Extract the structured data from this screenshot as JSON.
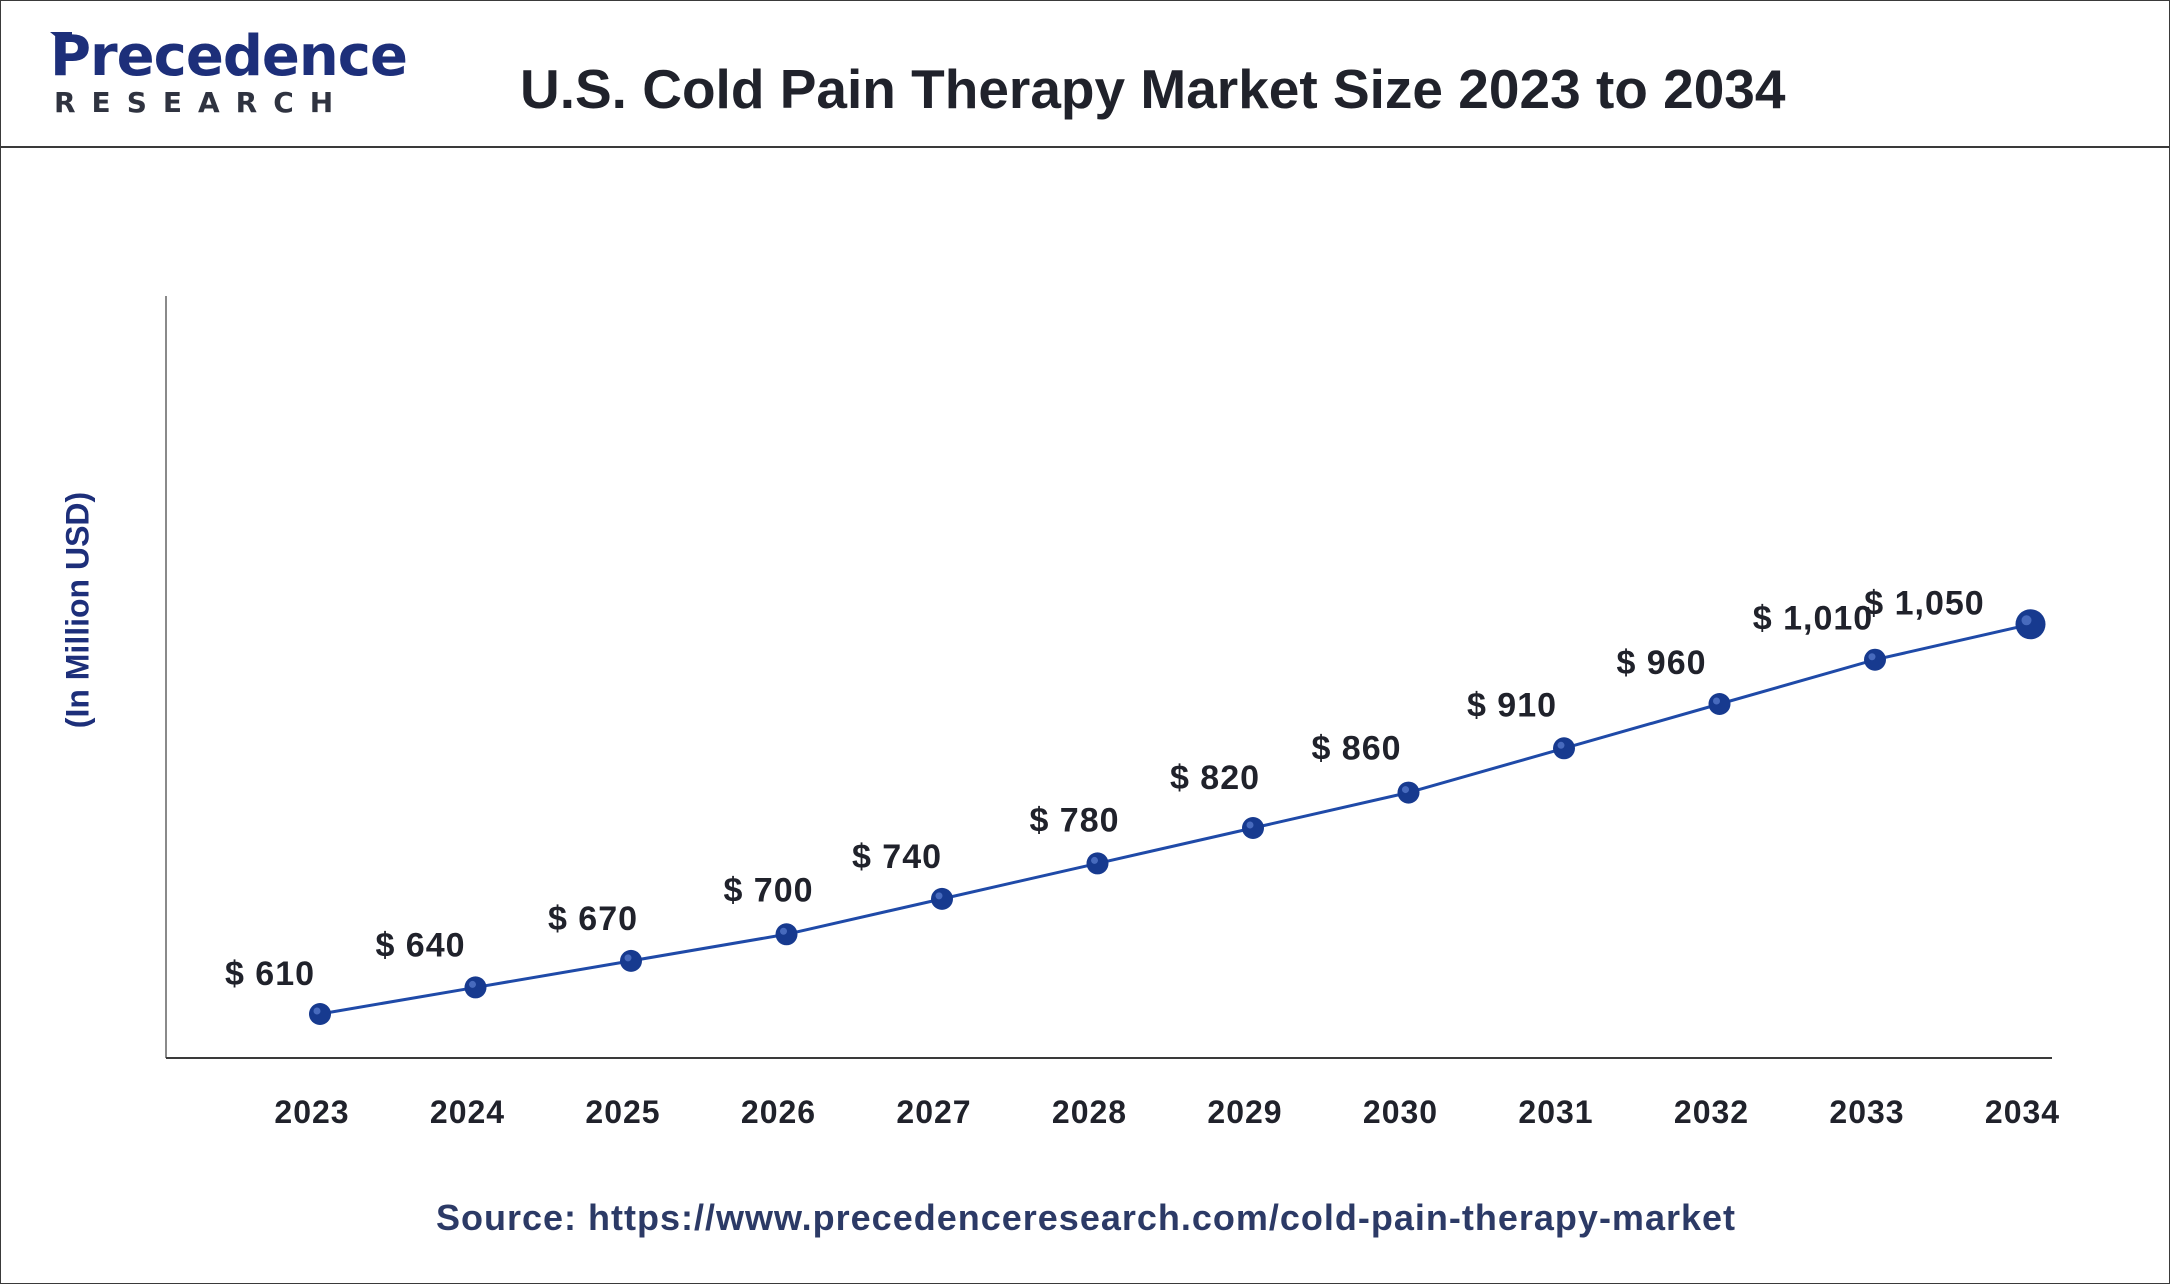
{
  "header": {
    "logo_word": "Precedence",
    "logo_sub": "RESEARCH",
    "title": "U.S. Cold Pain Therapy Market Size 2023 to 2034"
  },
  "footer": {
    "source": "Source: https://www.precedenceresearch.com/cold-pain-therapy-market"
  },
  "colors": {
    "line": "#1f4aa8",
    "marker": "#173a8f",
    "axis": "#3a3a3a",
    "label_text": "#20222b",
    "ylabel_text": "#1d2f7a"
  },
  "chart_data": {
    "type": "line",
    "title": "U.S. Cold Pain Therapy Market Size 2023 to 2034",
    "xlabel": "",
    "ylabel": "(In Million USD)",
    "categories": [
      "2023",
      "2024",
      "2025",
      "2026",
      "2027",
      "2028",
      "2029",
      "2030",
      "2031",
      "2032",
      "2033",
      "2034"
    ],
    "values": [
      610,
      640,
      670,
      700,
      740,
      780,
      820,
      860,
      910,
      960,
      1010,
      1050
    ],
    "value_labels": [
      "$ 610",
      "$ 640",
      "$ 670",
      "$ 700",
      "$ 740",
      "$ 780",
      "$ 820",
      "$ 860",
      "$ 910",
      "$ 960",
      "$ 1,010",
      "$ 1,050"
    ],
    "ylim": [
      560,
      1050
    ],
    "grid": false,
    "legend": "none"
  }
}
